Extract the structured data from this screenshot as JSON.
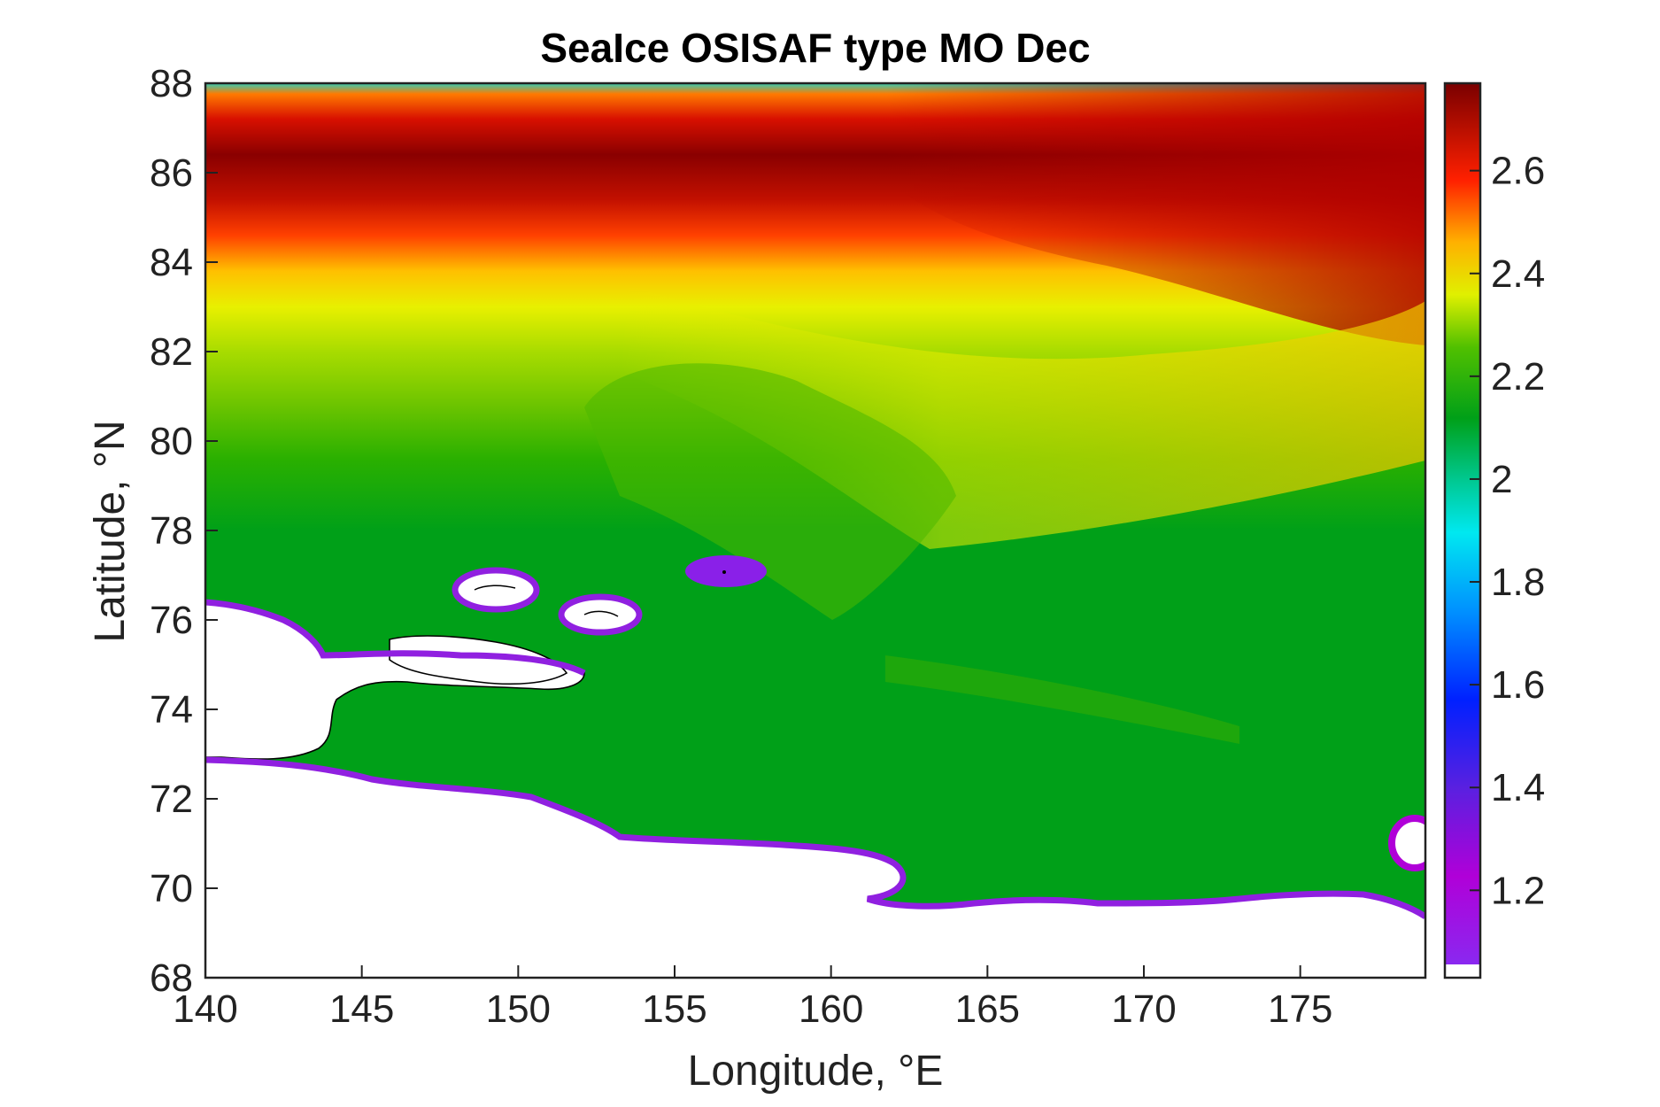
{
  "chart_data": {
    "type": "heatmap",
    "title": "SeaIce OSISAF type MO Dec",
    "xlabel": "Longitude, °E",
    "ylabel": "Latitude, °N",
    "xlim": [
      140,
      179
    ],
    "ylim": [
      68,
      88
    ],
    "xticks": [
      140,
      145,
      150,
      155,
      160,
      165,
      170,
      175
    ],
    "yticks": [
      68,
      70,
      72,
      74,
      76,
      78,
      80,
      82,
      84,
      86,
      88
    ],
    "colorbar": {
      "range": [
        1.03,
        2.77
      ],
      "ticks": [
        1.2,
        1.4,
        1.6,
        1.8,
        2,
        2.2,
        2.4,
        2.6
      ],
      "colormap": "jet-like (violet-blue-cyan-green-yellow-red-darkred)"
    },
    "field_profile": [
      {
        "lat": 88,
        "value": 1.9
      },
      {
        "lat": 87.5,
        "value": 2.7
      },
      {
        "lat": 86,
        "value": 2.75
      },
      {
        "lat": 85,
        "value": 2.55
      },
      {
        "lat": 84,
        "value": 2.3
      },
      {
        "lat": 82.5,
        "value": 2.2
      },
      {
        "lat": 80,
        "value": 2.05
      },
      {
        "lat": 76,
        "value": 2.0
      },
      {
        "lat": 70,
        "value": 2.0
      }
    ],
    "land_edge_value": 1.25
  }
}
